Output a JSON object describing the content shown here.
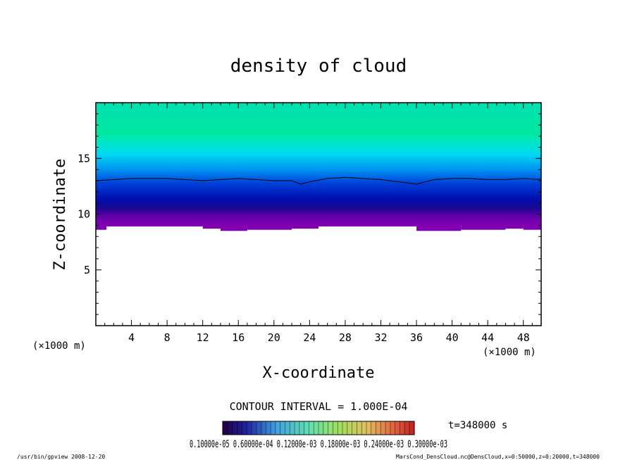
{
  "chart_data": {
    "type": "heatmap",
    "title": "density of cloud",
    "xlabel": "X-coordinate",
    "ylabel": "Z-coordinate",
    "x_unit": "(×1000 m)",
    "y_unit": "(×1000 m)",
    "xlim": [
      0,
      50
    ],
    "ylim": [
      0,
      20
    ],
    "x_ticks": [
      4,
      8,
      12,
      16,
      20,
      24,
      28,
      32,
      36,
      40,
      44,
      48
    ],
    "y_ticks": [
      5,
      10,
      15
    ],
    "contour_interval": "CONTOUR INTERVAL = 1.000E-04",
    "time_label": "t=348000 s",
    "colorbar_labels": "0.10000e-05 0.60000e-04 0.12000e-03 0.18000e-03 0.24000e-03 0.30000e-03",
    "footer_left": "/usr/bin/gpview   2008-12-20",
    "footer_right": "MarsCond_DensCloud.nc@DensCloud,x=0:50000,z=0:20000,t=348000",
    "cloud_base_z": 9.0,
    "contour_line": {
      "x": [
        0,
        2,
        4,
        6,
        8,
        10,
        12,
        14,
        16,
        18,
        20,
        22,
        23,
        24,
        26,
        28,
        30,
        32,
        34,
        36,
        38,
        40,
        42,
        44,
        46,
        48,
        50
      ],
      "z": [
        13.0,
        13.1,
        13.2,
        13.2,
        13.2,
        13.1,
        13.0,
        13.1,
        13.2,
        13.1,
        13.0,
        13.0,
        12.7,
        12.9,
        13.2,
        13.3,
        13.2,
        13.1,
        12.9,
        12.7,
        13.1,
        13.2,
        13.2,
        13.1,
        13.1,
        13.2,
        13.1
      ]
    },
    "colors": {
      "upper": "#00e8a0",
      "mid": "#00d8f0",
      "low": "#0018b8",
      "base": "#8000b0"
    }
  }
}
